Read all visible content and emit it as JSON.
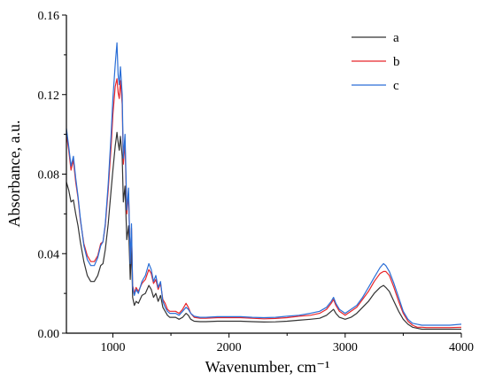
{
  "chart_data": {
    "type": "line",
    "xlabel": "Wavenumber, cm⁻¹",
    "ylabel": "Absorbance, a.u.",
    "xlim": [
      600,
      4000
    ],
    "ylim": [
      0,
      0.16
    ],
    "xticks": [
      1000,
      2000,
      3000,
      4000
    ],
    "xtick_labels": [
      "1000",
      "2000",
      "3000",
      "4000"
    ],
    "yticks": [
      0,
      0.04,
      0.08,
      0.12,
      0.16
    ],
    "ytick_labels": [
      "0.00",
      "0.04",
      "0.08",
      "0.12",
      "0.16"
    ],
    "grid": false,
    "legend_position": "top-right",
    "series": [
      {
        "name": "a",
        "color": "#333333",
        "x": [
          600,
          620,
          640,
          660,
          680,
          700,
          720,
          750,
          780,
          810,
          840,
          870,
          895,
          915,
          935,
          960,
          985,
          1000,
          1020,
          1035,
          1045,
          1055,
          1065,
          1080,
          1090,
          1105,
          1120,
          1135,
          1150,
          1160,
          1170,
          1185,
          1200,
          1220,
          1250,
          1280,
          1310,
          1330,
          1350,
          1370,
          1390,
          1410,
          1430,
          1450,
          1470,
          1490,
          1510,
          1540,
          1570,
          1600,
          1630,
          1650,
          1670,
          1700,
          1750,
          1800,
          1900,
          2000,
          2100,
          2200,
          2300,
          2400,
          2500,
          2600,
          2700,
          2780,
          2840,
          2880,
          2900,
          2920,
          2950,
          3000,
          3050,
          3100,
          3150,
          3200,
          3250,
          3300,
          3330,
          3350,
          3380,
          3420,
          3460,
          3500,
          3540,
          3580,
          3620,
          3660,
          3700,
          3800,
          3900,
          4000
        ],
        "y": [
          0.076,
          0.072,
          0.066,
          0.067,
          0.06,
          0.054,
          0.046,
          0.036,
          0.029,
          0.026,
          0.026,
          0.029,
          0.034,
          0.035,
          0.042,
          0.055,
          0.072,
          0.082,
          0.094,
          0.101,
          0.096,
          0.092,
          0.099,
          0.089,
          0.066,
          0.074,
          0.047,
          0.054,
          0.027,
          0.043,
          0.018,
          0.014,
          0.016,
          0.015,
          0.019,
          0.02,
          0.024,
          0.022,
          0.018,
          0.02,
          0.016,
          0.019,
          0.013,
          0.011,
          0.009,
          0.008,
          0.008,
          0.008,
          0.007,
          0.008,
          0.01,
          0.009,
          0.007,
          0.006,
          0.0058,
          0.0058,
          0.006,
          0.006,
          0.006,
          0.0058,
          0.0056,
          0.0057,
          0.006,
          0.0065,
          0.007,
          0.0075,
          0.009,
          0.011,
          0.012,
          0.01,
          0.008,
          0.007,
          0.008,
          0.01,
          0.013,
          0.016,
          0.02,
          0.023,
          0.024,
          0.023,
          0.021,
          0.016,
          0.011,
          0.007,
          0.0045,
          0.003,
          0.0025,
          0.002,
          0.002,
          0.002,
          0.002,
          0.002
        ]
      },
      {
        "name": "b",
        "color": "#e8262b",
        "x": [
          600,
          620,
          640,
          660,
          680,
          700,
          720,
          750,
          780,
          810,
          840,
          870,
          895,
          915,
          935,
          960,
          985,
          1000,
          1020,
          1035,
          1045,
          1055,
          1065,
          1080,
          1090,
          1105,
          1120,
          1135,
          1150,
          1160,
          1170,
          1185,
          1200,
          1220,
          1250,
          1280,
          1310,
          1330,
          1350,
          1370,
          1390,
          1410,
          1430,
          1450,
          1470,
          1490,
          1510,
          1540,
          1570,
          1600,
          1630,
          1650,
          1670,
          1700,
          1750,
          1800,
          1900,
          2000,
          2100,
          2200,
          2300,
          2400,
          2500,
          2600,
          2700,
          2780,
          2840,
          2880,
          2900,
          2920,
          2950,
          3000,
          3050,
          3100,
          3150,
          3200,
          3250,
          3300,
          3330,
          3350,
          3380,
          3420,
          3460,
          3500,
          3540,
          3580,
          3620,
          3660,
          3700,
          3800,
          3900,
          4000
        ],
        "y": [
          0.1,
          0.092,
          0.082,
          0.087,
          0.076,
          0.068,
          0.057,
          0.045,
          0.039,
          0.036,
          0.036,
          0.039,
          0.045,
          0.046,
          0.054,
          0.072,
          0.094,
          0.11,
          0.124,
          0.128,
          0.121,
          0.118,
          0.127,
          0.115,
          0.085,
          0.096,
          0.06,
          0.07,
          0.036,
          0.053,
          0.024,
          0.02,
          0.023,
          0.021,
          0.025,
          0.027,
          0.032,
          0.03,
          0.025,
          0.027,
          0.022,
          0.025,
          0.017,
          0.015,
          0.012,
          0.011,
          0.011,
          0.011,
          0.01,
          0.012,
          0.015,
          0.013,
          0.01,
          0.008,
          0.0075,
          0.0075,
          0.0078,
          0.0078,
          0.0078,
          0.0075,
          0.0072,
          0.0074,
          0.0078,
          0.0085,
          0.009,
          0.01,
          0.012,
          0.015,
          0.017,
          0.014,
          0.011,
          0.009,
          0.011,
          0.013,
          0.017,
          0.021,
          0.026,
          0.03,
          0.031,
          0.031,
          0.029,
          0.023,
          0.016,
          0.01,
          0.006,
          0.004,
          0.003,
          0.003,
          0.0028,
          0.0028,
          0.0028,
          0.003
        ]
      },
      {
        "name": "c",
        "color": "#2a6ed6",
        "x": [
          600,
          620,
          640,
          660,
          680,
          700,
          720,
          750,
          780,
          810,
          840,
          870,
          895,
          915,
          935,
          960,
          985,
          1000,
          1020,
          1035,
          1045,
          1055,
          1065,
          1080,
          1090,
          1105,
          1120,
          1135,
          1150,
          1160,
          1170,
          1185,
          1200,
          1220,
          1250,
          1280,
          1310,
          1330,
          1350,
          1370,
          1390,
          1410,
          1430,
          1450,
          1470,
          1490,
          1510,
          1540,
          1570,
          1600,
          1630,
          1650,
          1670,
          1700,
          1750,
          1800,
          1900,
          2000,
          2100,
          2200,
          2300,
          2400,
          2500,
          2600,
          2700,
          2780,
          2840,
          2880,
          2900,
          2920,
          2950,
          3000,
          3050,
          3100,
          3150,
          3200,
          3250,
          3300,
          3330,
          3350,
          3380,
          3420,
          3460,
          3500,
          3540,
          3580,
          3620,
          3660,
          3700,
          3800,
          3900,
          4000
        ],
        "y": [
          0.103,
          0.094,
          0.084,
          0.089,
          0.078,
          0.069,
          0.058,
          0.044,
          0.037,
          0.034,
          0.034,
          0.038,
          0.044,
          0.046,
          0.055,
          0.075,
          0.1,
          0.118,
          0.135,
          0.146,
          0.13,
          0.125,
          0.134,
          0.12,
          0.088,
          0.1,
          0.062,
          0.073,
          0.035,
          0.055,
          0.023,
          0.019,
          0.022,
          0.02,
          0.026,
          0.029,
          0.035,
          0.032,
          0.026,
          0.029,
          0.023,
          0.026,
          0.016,
          0.013,
          0.011,
          0.01,
          0.01,
          0.01,
          0.009,
          0.011,
          0.013,
          0.012,
          0.01,
          0.0085,
          0.008,
          0.008,
          0.0083,
          0.0083,
          0.0083,
          0.008,
          0.0078,
          0.008,
          0.0085,
          0.009,
          0.01,
          0.011,
          0.013,
          0.016,
          0.018,
          0.015,
          0.012,
          0.01,
          0.012,
          0.014,
          0.018,
          0.023,
          0.028,
          0.033,
          0.035,
          0.034,
          0.031,
          0.025,
          0.018,
          0.011,
          0.007,
          0.005,
          0.0045,
          0.004,
          0.004,
          0.004,
          0.004,
          0.0045
        ]
      }
    ]
  }
}
